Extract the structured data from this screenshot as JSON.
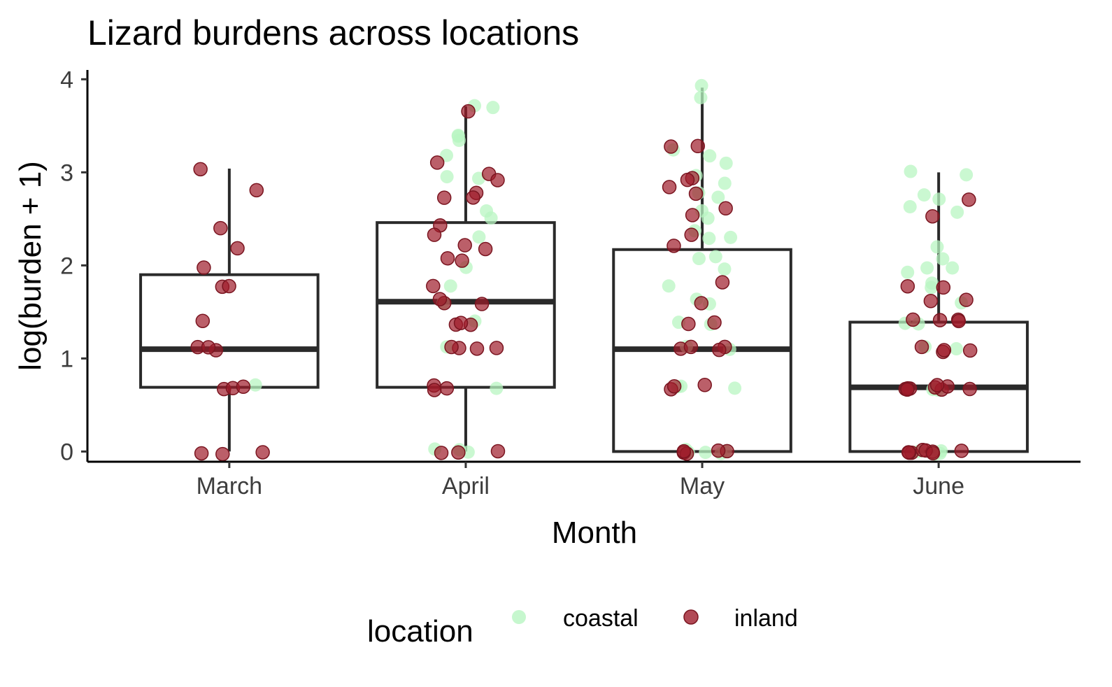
{
  "chart_data": {
    "type": "boxplot",
    "title": "Lizard burdens across locations",
    "xlabel": "Month",
    "ylabel": "log(burden + 1)",
    "categories": [
      "March",
      "April",
      "May",
      "June"
    ],
    "ylim": [
      -0.2,
      4.1
    ],
    "yticks": [
      0,
      1,
      2,
      3,
      4
    ],
    "grid": false,
    "legend": {
      "title": "location",
      "position": "bottom",
      "entries": [
        {
          "name": "coastal",
          "color": "#b8f5c2"
        },
        {
          "name": "inland",
          "color": "#9e1b2a"
        }
      ]
    },
    "boxes": [
      {
        "category": "March",
        "whisker_low": 0,
        "q1": 0.69,
        "median": 1.1,
        "q3": 1.9,
        "whisker_high": 3.04
      },
      {
        "category": "April",
        "whisker_low": 0,
        "q1": 0.69,
        "median": 1.61,
        "q3": 2.46,
        "whisker_high": 3.71
      },
      {
        "category": "May",
        "whisker_low": 0,
        "q1": 0,
        "median": 1.1,
        "q3": 2.17,
        "whisker_high": 3.91
      },
      {
        "category": "June",
        "whisker_low": 0,
        "q1": 0,
        "median": 0.69,
        "q3": 1.39,
        "whisker_high": 3.0
      }
    ],
    "points": {
      "March": {
        "coastal": [
          0.69
        ],
        "inland": [
          3.04,
          2.83,
          2.4,
          2.2,
          1.95,
          1.79,
          1.79,
          1.39,
          1.1,
          1.1,
          1.1,
          0.69,
          0.69,
          0.69,
          0,
          0,
          0
        ]
      },
      "April": {
        "coastal": [
          3.71,
          3.71,
          3.4,
          3.37,
          3.35,
          3.2,
          2.96,
          2.94,
          2.56,
          2.49,
          2.3,
          1.95,
          1.79,
          1.61,
          1.39,
          1.1,
          0.69,
          0,
          0,
          0
        ],
        "inland": [
          3.66,
          3.09,
          3.0,
          2.94,
          2.77,
          2.71,
          2.71,
          2.4,
          2.3,
          2.2,
          2.2,
          2.08,
          2.08,
          1.79,
          1.61,
          1.61,
          1.61,
          1.39,
          1.39,
          1.39,
          1.1,
          1.1,
          1.1,
          1.1,
          0.69,
          0.69,
          0.69,
          0,
          0,
          0
        ]
      },
      "May": {
        "coastal": [
          3.91,
          3.81,
          3.22,
          3.18,
          3.09,
          2.94,
          2.89,
          2.77,
          2.71,
          2.56,
          2.49,
          2.4,
          2.3,
          2.3,
          2.08,
          2.08,
          1.95,
          1.79,
          1.61,
          1.61,
          1.39,
          1.39,
          1.1,
          1.1,
          0.69,
          0.69,
          0.69,
          0,
          0,
          0,
          0,
          0
        ],
        "inland": [
          3.3,
          3.3,
          2.94,
          2.89,
          2.83,
          2.77,
          2.64,
          2.56,
          2.3,
          2.2,
          1.79,
          1.61,
          1.39,
          1.39,
          1.1,
          1.1,
          1.1,
          1.1,
          0.69,
          0.69,
          0.69,
          0,
          0,
          0,
          0,
          0
        ]
      },
      "June": {
        "coastal": [
          3.0,
          2.97,
          2.77,
          2.71,
          2.64,
          2.56,
          2.2,
          2.08,
          1.95,
          1.95,
          1.95,
          1.79,
          1.79,
          1.61,
          1.39,
          1.39,
          1.1,
          1.1,
          0.69,
          0.69,
          0.69,
          0,
          0,
          0,
          0
        ],
        "inland": [
          2.71,
          2.5,
          1.79,
          1.79,
          1.61,
          1.61,
          1.39,
          1.39,
          1.39,
          1.39,
          1.1,
          1.1,
          1.1,
          1.1,
          0.69,
          0.69,
          0.69,
          0.69,
          0.69,
          0.69,
          0.69,
          0.69,
          0.69,
          0,
          0,
          0,
          0,
          0,
          0,
          0,
          0
        ]
      }
    }
  }
}
